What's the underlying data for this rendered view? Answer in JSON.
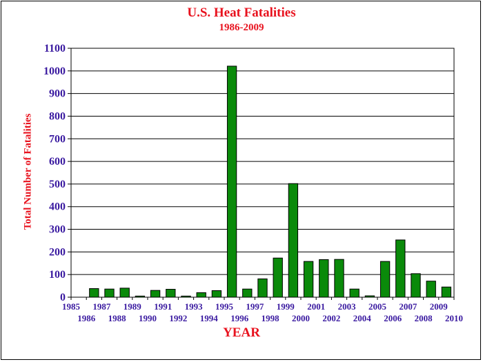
{
  "chart_data": {
    "type": "bar",
    "title": "U.S. Heat Fatalities",
    "subtitle": "1986-2009",
    "xlabel": "YEAR",
    "ylabel": "Total Number of Fatalities",
    "ylim": [
      0,
      1100
    ],
    "yticks": [
      0,
      100,
      200,
      300,
      400,
      500,
      600,
      700,
      800,
      900,
      1000,
      1100
    ],
    "xlim": [
      1985,
      2010
    ],
    "xtick_labels": [
      "1985",
      "1986",
      "1987",
      "1988",
      "1989",
      "1990",
      "1991",
      "1992",
      "1993",
      "1994",
      "1995",
      "1996",
      "1997",
      "1998",
      "1999",
      "2000",
      "2001",
      "2002",
      "2003",
      "2004",
      "2005",
      "2006",
      "2007",
      "2008",
      "2009",
      "2010"
    ],
    "categories": [
      "1986",
      "1987",
      "1988",
      "1989",
      "1990",
      "1991",
      "1992",
      "1993",
      "1994",
      "1995",
      "1996",
      "1997",
      "1998",
      "1999",
      "2000",
      "2001",
      "2002",
      "2003",
      "2004",
      "2005",
      "2006",
      "2007",
      "2008",
      "2009"
    ],
    "values": [
      38,
      36,
      40,
      5,
      30,
      35,
      5,
      20,
      29,
      1021,
      36,
      81,
      173,
      502,
      158,
      166,
      167,
      36,
      6,
      158,
      253,
      104,
      71,
      45
    ],
    "grid": true,
    "legend": "none",
    "colors": {
      "bar": "#0a8a0a",
      "bar_edge": "#000000",
      "title": "#e8121e",
      "tick_label": "#3a1aa0",
      "grid": "#000000"
    }
  }
}
